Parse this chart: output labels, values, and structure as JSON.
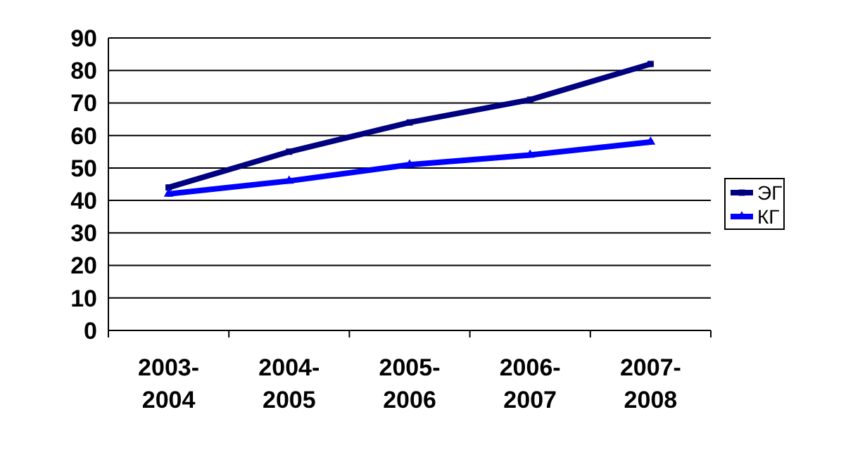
{
  "chart_data": {
    "type": "line",
    "categories": [
      "2003-\n2004",
      "2004-\n2005",
      "2005-\n2006",
      "2006-\n2007",
      "2007-\n2008"
    ],
    "series": [
      {
        "name": "ЭГ",
        "color": "#000080",
        "marker": "square",
        "values": [
          44,
          55,
          64,
          71,
          82
        ]
      },
      {
        "name": "КГ",
        "color": "#0000ff",
        "marker": "triangle",
        "values": [
          42,
          46,
          51,
          54,
          58
        ]
      }
    ],
    "ylim": [
      0,
      90
    ],
    "yticks": [
      0,
      10,
      20,
      30,
      40,
      50,
      60,
      70,
      80,
      90
    ],
    "grid": "y",
    "legend": "right"
  }
}
